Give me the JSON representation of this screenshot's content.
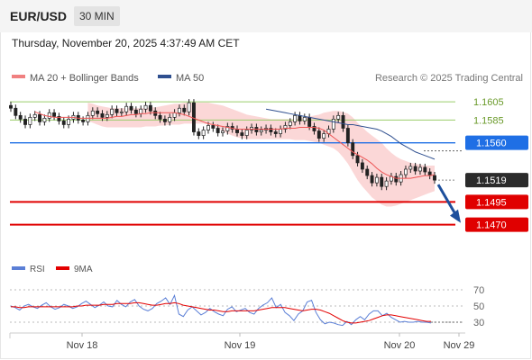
{
  "header": {
    "symbol": "EUR/USD",
    "timeframe": "30 MIN",
    "timestamp": "Thursday, November 20, 2025 4:37:49 AM CET"
  },
  "legend": {
    "main": [
      {
        "label": "MA 20 + Bollinger Bands",
        "color": "#f08080"
      },
      {
        "label": "MA 50",
        "color": "#2f4f8f"
      }
    ],
    "credit": "Research © 2025 Trading Central",
    "rsi": [
      {
        "label": "RSI",
        "color": "#5b7fd6"
      },
      {
        "label": "9MA",
        "color": "#e30000"
      }
    ]
  },
  "colors": {
    "bull": "#ffffff",
    "bear": "#222222",
    "support": "#e00000",
    "pivot": "#1f6fe5",
    "resistance": "#9acd6a",
    "band": "#f9c9c9",
    "arrow": "#1d4f9c"
  },
  "chart_data": [
    {
      "type": "candlestick",
      "ylim": [
        1.144,
        1.162
      ],
      "x_labels": [
        "Nov 18",
        "Nov 19",
        "Nov 20",
        "Nov 29"
      ],
      "levels": [
        {
          "value": 1.1605,
          "label": "1.1605",
          "kind": "resistance"
        },
        {
          "value": 1.1585,
          "label": "1.1585",
          "kind": "resistance"
        },
        {
          "value": 1.156,
          "label": "1.1560",
          "kind": "pivot"
        },
        {
          "value": 1.1519,
          "label": "1.1519",
          "kind": "last"
        },
        {
          "value": 1.1495,
          "label": "1.1495",
          "kind": "support"
        },
        {
          "value": 1.147,
          "label": "1.1470",
          "kind": "support"
        }
      ],
      "close": [
        1.1598,
        1.159,
        1.1586,
        1.158,
        1.1588,
        1.1591,
        1.1583,
        1.1587,
        1.1593,
        1.1589,
        1.1584,
        1.158,
        1.1586,
        1.159,
        1.1585,
        1.1583,
        1.159,
        1.1595,
        1.1592,
        1.1588,
        1.1591,
        1.1597,
        1.1593,
        1.1594,
        1.16,
        1.1596,
        1.1592,
        1.1597,
        1.1601,
        1.1595,
        1.159,
        1.1586,
        1.1583,
        1.1588,
        1.1593,
        1.1598,
        1.1594,
        1.1604,
        1.1572,
        1.1568,
        1.1574,
        1.1579,
        1.1576,
        1.1571,
        1.1573,
        1.1578,
        1.1575,
        1.1571,
        1.1568,
        1.1574,
        1.1577,
        1.1572,
        1.1574,
        1.1576,
        1.1572,
        1.157,
        1.1575,
        1.1579,
        1.1583,
        1.159,
        1.1584,
        1.1588,
        1.1578,
        1.1573,
        1.1565,
        1.157,
        1.1575,
        1.1586,
        1.159,
        1.1576,
        1.156,
        1.1546,
        1.1538,
        1.1531,
        1.1524,
        1.1516,
        1.1522,
        1.1512,
        1.1518,
        1.1523,
        1.1517,
        1.1525,
        1.1531,
        1.1534,
        1.1529,
        1.1533,
        1.1528,
        1.1524,
        1.1519
      ],
      "ma20": [
        1.1594,
        1.1592,
        1.159,
        1.1589,
        1.1588,
        1.1588,
        1.1588,
        1.1588,
        1.1588,
        1.1587,
        1.1587,
        1.1587,
        1.1587,
        1.1587,
        1.1587,
        1.1587,
        1.1588,
        1.1589,
        1.1589,
        1.159,
        1.1591,
        1.1591,
        1.1592,
        1.1592,
        1.1593,
        1.1593,
        1.1593,
        1.1593,
        1.1593,
        1.1593,
        1.1592,
        1.1591,
        1.1589,
        1.1587,
        1.1585,
        1.1583,
        1.1581,
        1.158,
        1.1579,
        1.1578,
        1.1577,
        1.1576,
        1.1575,
        1.1575,
        1.1575,
        1.1575,
        1.1575,
        1.1575,
        1.1575,
        1.1575,
        1.1575,
        1.1575,
        1.1576,
        1.1576,
        1.1576,
        1.1577,
        1.1577,
        1.1577,
        1.1577,
        1.1576,
        1.1574,
        1.157,
        1.1566,
        1.1562,
        1.1558,
        1.1554,
        1.155,
        1.1547,
        1.1544,
        1.1541,
        1.1537,
        1.1532,
        1.1528,
        1.1525,
        1.1523,
        1.1521,
        1.1521,
        1.1521,
        1.1521,
        1.1522,
        1.1523,
        1.1524,
        1.1524,
        1.1525
      ],
      "bb_upper": [
        1.1604,
        1.1603,
        1.1601,
        1.16,
        1.1599,
        1.1598,
        1.1598,
        1.1598,
        1.1598,
        1.1598,
        1.1598,
        1.1598,
        1.1598,
        1.1599,
        1.1599,
        1.16,
        1.1601,
        1.1602,
        1.1603,
        1.1603,
        1.1604,
        1.1604,
        1.1604,
        1.1604,
        1.1604,
        1.1604,
        1.1603,
        1.1602,
        1.1601,
        1.1599,
        1.1597,
        1.1595,
        1.1593,
        1.1591,
        1.159,
        1.1589,
        1.1588,
        1.1587,
        1.1586,
        1.1586,
        1.1586,
        1.1586,
        1.1586,
        1.1586,
        1.1587,
        1.1588,
        1.1589,
        1.159,
        1.1591,
        1.1593,
        1.1594,
        1.1595,
        1.1595,
        1.1594,
        1.1592,
        1.1588,
        1.1582,
        1.1577,
        1.1572,
        1.1568,
        1.1564,
        1.156,
        1.1554,
        1.1549,
        1.1545,
        1.1542,
        1.154,
        1.1538,
        1.1537,
        1.1536,
        1.1535,
        1.1535,
        1.1535
      ],
      "bb_lower": [
        1.1584,
        1.1582,
        1.158,
        1.1578,
        1.1577,
        1.1577,
        1.1577,
        1.1577,
        1.1577,
        1.1577,
        1.1577,
        1.1577,
        1.1578,
        1.1578,
        1.1578,
        1.1579,
        1.1579,
        1.158,
        1.158,
        1.158,
        1.1581,
        1.1581,
        1.1581,
        1.1581,
        1.1581,
        1.158,
        1.1579,
        1.1576,
        1.1573,
        1.157,
        1.1568,
        1.1566,
        1.1565,
        1.1564,
        1.1564,
        1.1564,
        1.1564,
        1.1564,
        1.1564,
        1.1564,
        1.1564,
        1.1564,
        1.1564,
        1.1563,
        1.1563,
        1.1563,
        1.1562,
        1.1561,
        1.156,
        1.1558,
        1.1556,
        1.1554,
        1.155,
        1.1544,
        1.1537,
        1.1528,
        1.1519,
        1.1512,
        1.1506,
        1.15,
        1.1496,
        1.1492,
        1.149,
        1.149,
        1.1491,
        1.1493,
        1.1495,
        1.1497,
        1.1499,
        1.1501,
        1.1503,
        1.1505,
        1.1507
      ],
      "ma50": [
        1.1597,
        1.1596,
        1.1595,
        1.1594,
        1.1593,
        1.1592,
        1.1591,
        1.159,
        1.1589,
        1.1588,
        1.1587,
        1.1586,
        1.1585,
        1.1584,
        1.1583,
        1.1582,
        1.1581,
        1.158,
        1.158,
        1.1579,
        1.1578,
        1.1577,
        1.1576,
        1.1575,
        1.1573,
        1.157,
        1.1567,
        1.1563,
        1.1559,
        1.1556,
        1.1553,
        1.155,
        1.1548,
        1.1546,
        1.1544,
        1.1542
      ],
      "projection": [
        {
          "from": 1.1519,
          "to": 1.147
        }
      ]
    },
    {
      "type": "line",
      "name": "RSI",
      "ylim": [
        20,
        80
      ],
      "ticks": [
        70,
        50,
        30
      ],
      "rsi": [
        50,
        48,
        45,
        50,
        52,
        49,
        47,
        51,
        54,
        49,
        46,
        48,
        52,
        50,
        47,
        49,
        53,
        56,
        52,
        48,
        51,
        55,
        50,
        49,
        57,
        52,
        49,
        55,
        58,
        50,
        46,
        44,
        47,
        53,
        56,
        60,
        52,
        63,
        40,
        37,
        45,
        49,
        44,
        39,
        42,
        47,
        43,
        40,
        38,
        46,
        49,
        43,
        45,
        47,
        42,
        40,
        47,
        51,
        54,
        60,
        48,
        52,
        42,
        38,
        32,
        40,
        44,
        55,
        57,
        42,
        33,
        28,
        30,
        29,
        27,
        26,
        31,
        27,
        33,
        37,
        33,
        40,
        44,
        44,
        38,
        41,
        36,
        33,
        30,
        31,
        30,
        30,
        31,
        30,
        30,
        29
      ],
      "ma9": [
        49,
        49,
        48,
        48,
        49,
        49,
        49,
        49,
        49,
        49,
        49,
        49,
        49,
        49,
        49,
        50,
        50,
        51,
        51,
        51,
        51,
        52,
        52,
        52,
        53,
        53,
        53,
        53,
        54,
        54,
        53,
        52,
        51,
        51,
        52,
        53,
        53,
        54,
        53,
        51,
        50,
        49,
        48,
        47,
        46,
        45,
        45,
        44,
        43,
        43,
        44,
        44,
        44,
        44,
        44,
        44,
        45,
        46,
        47,
        48,
        48,
        48,
        48,
        47,
        46,
        45,
        44,
        45,
        46,
        46,
        45,
        43,
        41,
        38,
        35,
        32,
        30,
        29,
        29,
        30,
        31,
        32,
        34,
        36,
        38,
        39,
        39,
        38,
        37,
        36,
        35,
        34,
        33,
        32,
        31,
        31
      ]
    }
  ]
}
